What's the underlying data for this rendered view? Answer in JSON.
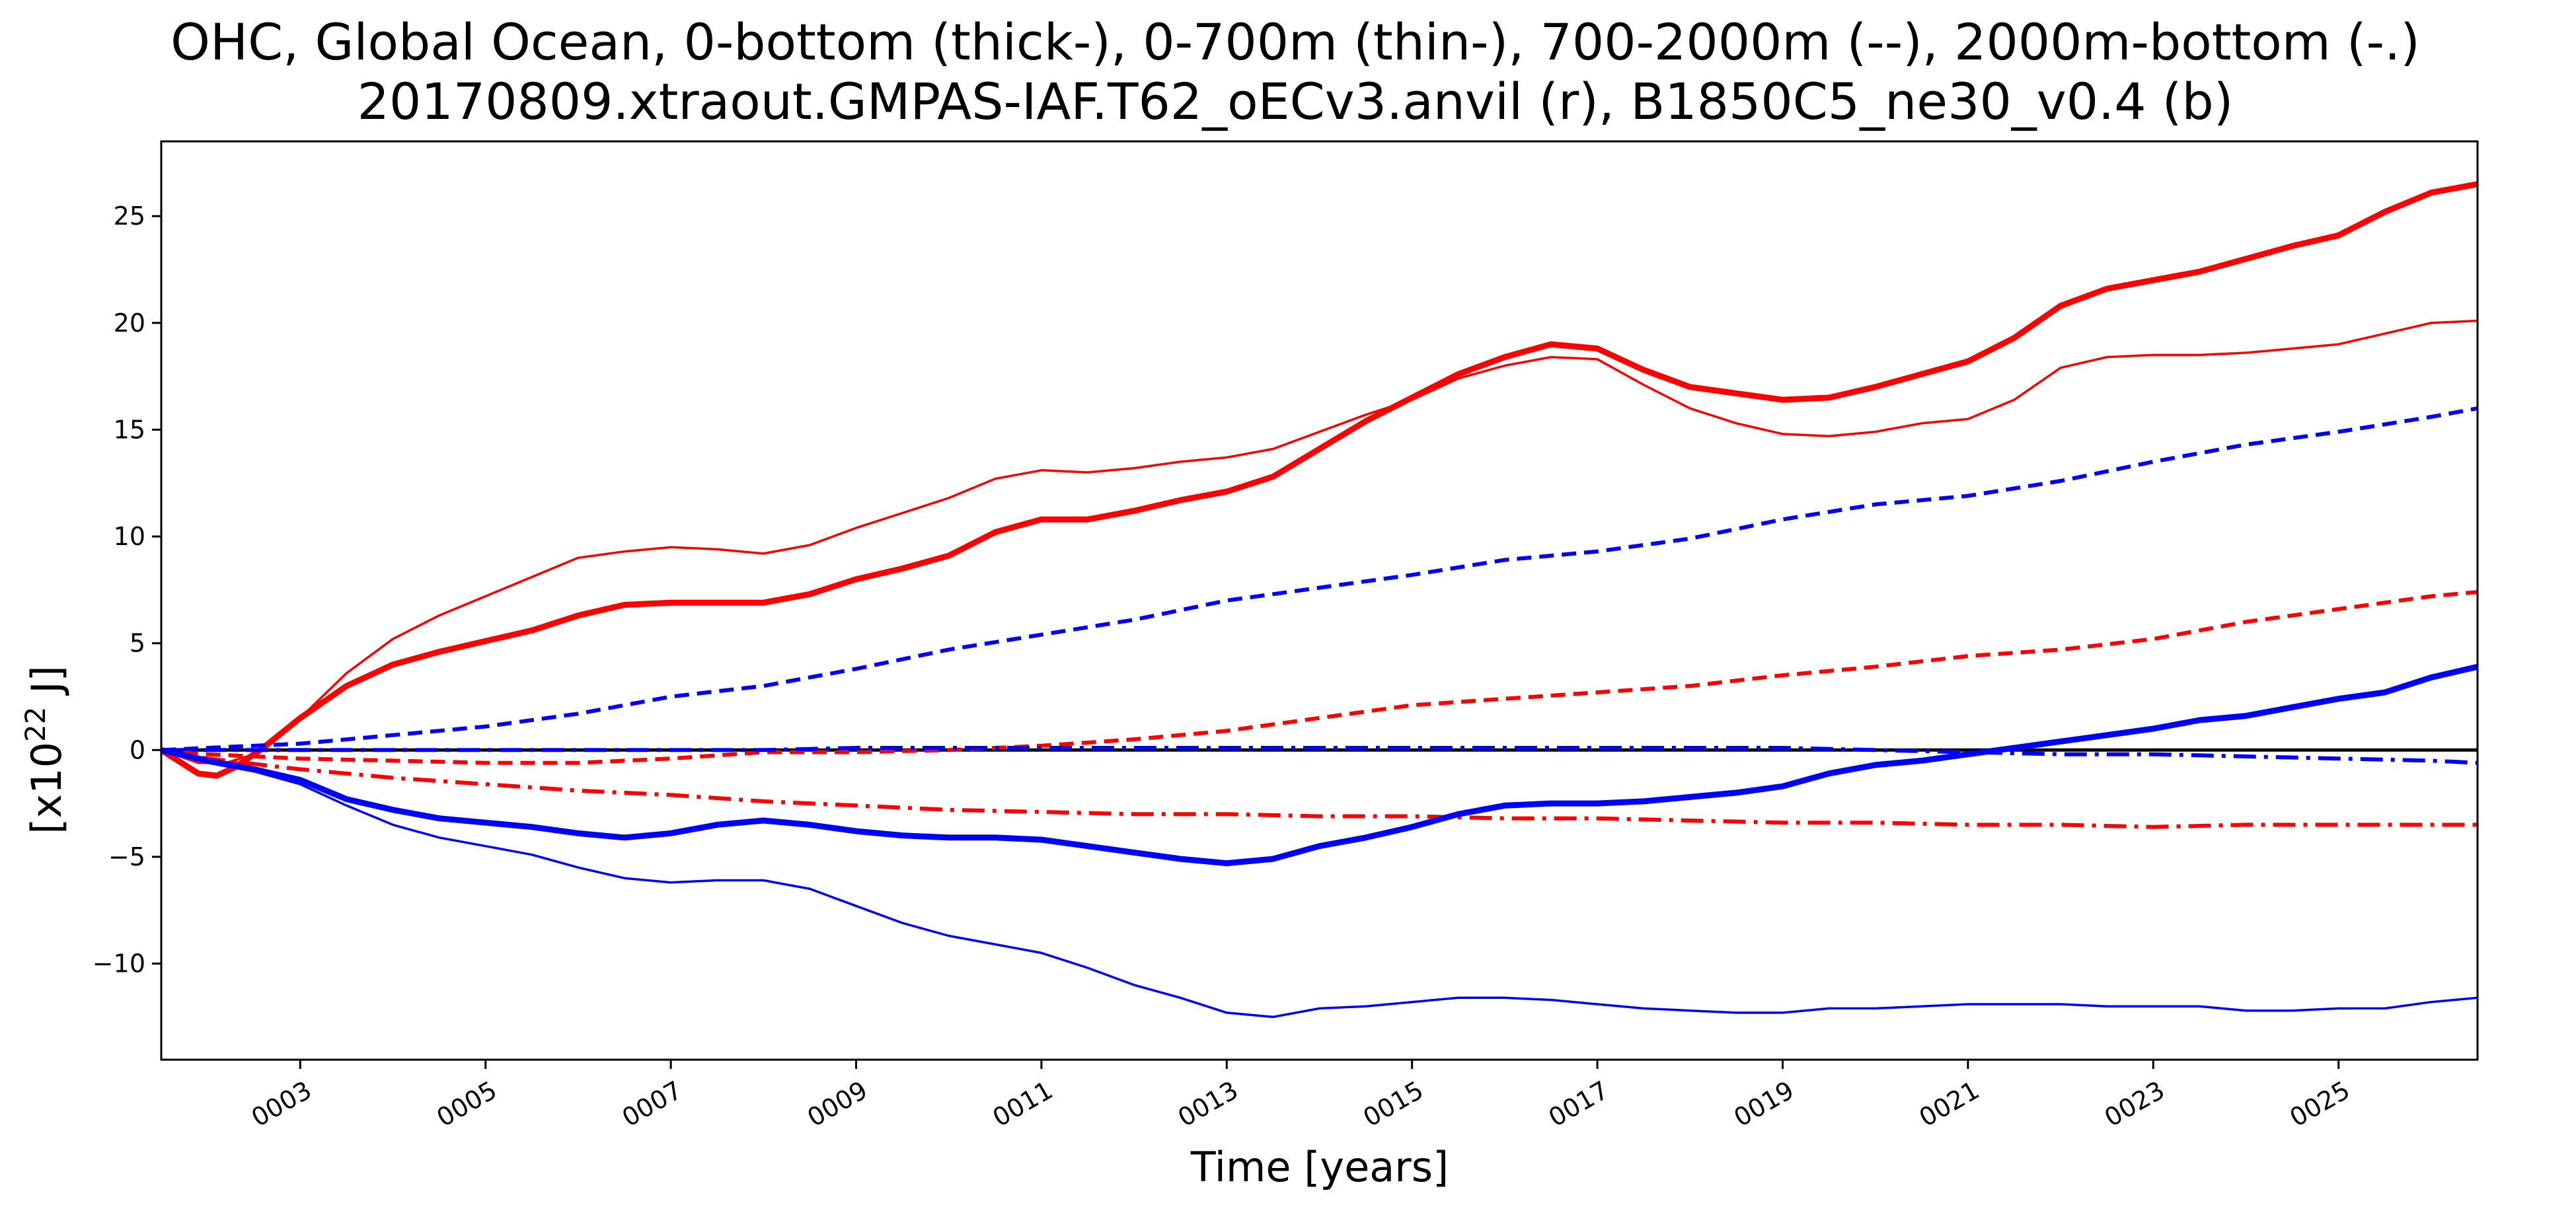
{
  "chart_data": {
    "type": "line",
    "title": [
      "OHC, Global Ocean, 0-bottom (thick-), 0-700m (thin-), 700-2000m (--), 2000m-bottom (-.)",
      "20170809.xtraout.GMPAS-IAF.T62_oECv3.anvil (r), B1850C5_ne30_v0.4 (b)"
    ],
    "xlabel": "Time [years]",
    "ylabel": "[x10",
    "ylabel_superscript": "22",
    "ylabel_unit": " J]",
    "xlim": [
      1.5,
      26.5
    ],
    "ylim": [
      -14.5,
      28.5
    ],
    "yticks": [
      -10,
      -5,
      0,
      5,
      10,
      15,
      20,
      25
    ],
    "xticks": [
      3,
      5,
      7,
      9,
      11,
      13,
      15,
      17,
      19,
      21,
      23,
      25
    ],
    "xtick_labels": [
      "0003",
      "0005",
      "0007",
      "0009",
      "0011",
      "0013",
      "0015",
      "0017",
      "0019",
      "0021",
      "0023",
      "0025"
    ],
    "zero_line": {
      "y": 0,
      "color": "#000000"
    },
    "grid": false,
    "legend": "none",
    "series": [
      {
        "run": "20170809.xtraout.GMPAS-IAF.T62_oECv3.anvil",
        "depth": "0-bottom",
        "color": "#ff0000",
        "style": "thick",
        "x": [
          1.5,
          1.9,
          2.1,
          2.3,
          2.6,
          3.0,
          3.5,
          4.0,
          4.5,
          5.0,
          5.5,
          6.0,
          6.5,
          7.0,
          7.5,
          8.0,
          8.5,
          9.0,
          9.5,
          10.0,
          10.5,
          11.0,
          11.5,
          12.0,
          12.5,
          13.0,
          13.5,
          14.0,
          14.5,
          15.0,
          15.5,
          16.0,
          16.5,
          17.0,
          17.5,
          18.0,
          18.5,
          19.0,
          19.5,
          20.0,
          20.5,
          21.0,
          21.5,
          22.0,
          22.5,
          23.0,
          23.5,
          24.0,
          24.5,
          25.0,
          25.5,
          26.0,
          26.5
        ],
        "y": [
          0,
          -1.1,
          -1.2,
          -0.8,
          0.1,
          1.5,
          3.0,
          4.0,
          4.6,
          5.1,
          5.6,
          6.3,
          6.8,
          6.9,
          6.9,
          6.9,
          7.3,
          8.0,
          8.5,
          9.1,
          10.2,
          10.8,
          10.8,
          11.2,
          11.7,
          12.1,
          12.8,
          14.1,
          15.4,
          16.5,
          17.6,
          18.4,
          19.0,
          18.8,
          17.8,
          17.0,
          16.7,
          16.4,
          16.5,
          17.0,
          17.6,
          18.2,
          19.3,
          20.8,
          21.6,
          22.0,
          22.4,
          23.0,
          23.6,
          24.1,
          25.2,
          26.1,
          26.5
        ]
      },
      {
        "run": "20170809.xtraout.GMPAS-IAF.T62_oECv3.anvil",
        "depth": "0-700m",
        "color": "#ff0000",
        "style": "thin",
        "x": [
          1.5,
          1.9,
          2.2,
          2.5,
          3.0,
          3.5,
          4.0,
          4.5,
          5.0,
          5.5,
          6.0,
          6.5,
          7.0,
          7.5,
          8.0,
          8.5,
          9.0,
          9.5,
          10.0,
          10.5,
          11.0,
          11.5,
          12.0,
          12.5,
          13.0,
          13.5,
          14.0,
          14.5,
          15.0,
          15.5,
          16.0,
          16.5,
          17.0,
          17.5,
          18.0,
          18.5,
          19.0,
          19.5,
          20.0,
          20.5,
          21.0,
          21.5,
          22.0,
          22.5,
          23.0,
          23.5,
          24.0,
          24.5,
          25.0,
          25.5,
          26.0,
          26.5
        ],
        "y": [
          0,
          -0.6,
          -0.6,
          -0.2,
          1.5,
          3.6,
          5.2,
          6.3,
          7.2,
          8.1,
          9.0,
          9.3,
          9.5,
          9.4,
          9.2,
          9.6,
          10.4,
          11.1,
          11.8,
          12.7,
          13.1,
          13.0,
          13.2,
          13.5,
          13.7,
          14.1,
          14.9,
          15.7,
          16.4,
          17.4,
          18.0,
          18.4,
          18.3,
          17.1,
          16.0,
          15.3,
          14.8,
          14.7,
          14.9,
          15.3,
          15.5,
          16.4,
          17.9,
          18.4,
          18.5,
          18.5,
          18.6,
          18.8,
          19.0,
          19.5,
          20.0,
          20.1
        ]
      },
      {
        "run": "20170809.xtraout.GMPAS-IAF.T62_oECv3.anvil",
        "depth": "700-2000m",
        "color": "#ff0000",
        "style": "dashed",
        "x": [
          1.5,
          2.0,
          3.0,
          4.0,
          5.0,
          6.0,
          7.0,
          8.0,
          9.0,
          10.0,
          11.0,
          12.0,
          13.0,
          14.0,
          15.0,
          16.0,
          17.0,
          18.0,
          19.0,
          20.0,
          21.0,
          22.0,
          23.0,
          24.0,
          25.0,
          26.0,
          26.5
        ],
        "y": [
          0,
          -0.2,
          -0.4,
          -0.5,
          -0.6,
          -0.6,
          -0.4,
          -0.1,
          -0.1,
          0.0,
          0.2,
          0.5,
          0.9,
          1.5,
          2.1,
          2.4,
          2.7,
          3.0,
          3.5,
          3.9,
          4.4,
          4.7,
          5.2,
          6.0,
          6.6,
          7.2,
          7.4
        ]
      },
      {
        "run": "20170809.xtraout.GMPAS-IAF.T62_oECv3.anvil",
        "depth": "2000m-bottom",
        "color": "#ff0000",
        "style": "dashdot",
        "x": [
          1.5,
          2.0,
          3.0,
          4.0,
          5.0,
          6.0,
          7.0,
          8.0,
          9.0,
          10.0,
          11.0,
          12.0,
          13.0,
          14.0,
          15.0,
          16.0,
          17.0,
          18.0,
          19.0,
          20.0,
          21.0,
          22.0,
          23.0,
          24.0,
          25.0,
          26.0,
          26.5
        ],
        "y": [
          0,
          -0.4,
          -0.9,
          -1.3,
          -1.6,
          -1.9,
          -2.1,
          -2.4,
          -2.6,
          -2.8,
          -2.9,
          -3.0,
          -3.0,
          -3.1,
          -3.1,
          -3.2,
          -3.2,
          -3.3,
          -3.4,
          -3.4,
          -3.5,
          -3.5,
          -3.6,
          -3.5,
          -3.5,
          -3.5,
          -3.5
        ]
      },
      {
        "run": "B1850C5_ne30_v0.4",
        "depth": "0-bottom",
        "color": "#0000ff",
        "style": "thick",
        "x": [
          1.5,
          2.0,
          2.5,
          3.0,
          3.5,
          4.0,
          4.5,
          5.0,
          5.5,
          6.0,
          6.5,
          7.0,
          7.5,
          8.0,
          8.5,
          9.0,
          9.5,
          10.0,
          10.5,
          11.0,
          11.5,
          12.0,
          12.5,
          13.0,
          13.5,
          14.0,
          14.5,
          15.0,
          15.5,
          16.0,
          16.5,
          17.0,
          17.5,
          18.0,
          18.5,
          19.0,
          19.5,
          20.0,
          20.5,
          21.0,
          21.5,
          22.0,
          22.5,
          23.0,
          23.5,
          24.0,
          24.5,
          25.0,
          25.5,
          26.0,
          26.5
        ],
        "y": [
          0,
          -0.5,
          -0.9,
          -1.4,
          -2.3,
          -2.8,
          -3.2,
          -3.4,
          -3.6,
          -3.9,
          -4.1,
          -3.9,
          -3.5,
          -3.3,
          -3.5,
          -3.8,
          -4.0,
          -4.1,
          -4.1,
          -4.2,
          -4.5,
          -4.8,
          -5.1,
          -5.3,
          -5.1,
          -4.5,
          -4.1,
          -3.6,
          -3.0,
          -2.6,
          -2.5,
          -2.5,
          -2.4,
          -2.2,
          -2.0,
          -1.7,
          -1.1,
          -0.7,
          -0.5,
          -0.2,
          0.1,
          0.4,
          0.7,
          1.0,
          1.4,
          1.6,
          2.0,
          2.4,
          2.7,
          3.4,
          3.9
        ]
      },
      {
        "run": "B1850C5_ne30_v0.4",
        "depth": "0-700m",
        "color": "#0000ff",
        "style": "thin",
        "x": [
          1.5,
          2.0,
          2.5,
          3.0,
          3.5,
          4.0,
          4.5,
          5.0,
          5.5,
          6.0,
          6.5,
          7.0,
          7.5,
          8.0,
          8.5,
          9.0,
          9.5,
          10.0,
          10.5,
          11.0,
          11.5,
          12.0,
          12.5,
          13.0,
          13.5,
          14.0,
          14.5,
          15.0,
          15.5,
          16.0,
          16.5,
          17.0,
          17.5,
          18.0,
          18.5,
          19.0,
          19.5,
          20.0,
          20.5,
          21.0,
          21.5,
          22.0,
          22.5,
          23.0,
          23.5,
          24.0,
          24.5,
          25.0,
          25.5,
          26.0,
          26.5
        ],
        "y": [
          0,
          -0.6,
          -1.0,
          -1.6,
          -2.6,
          -3.5,
          -4.1,
          -4.5,
          -4.9,
          -5.5,
          -6.0,
          -6.2,
          -6.1,
          -6.1,
          -6.5,
          -7.3,
          -8.1,
          -8.7,
          -9.1,
          -9.5,
          -10.2,
          -11.0,
          -11.6,
          -12.3,
          -12.5,
          -12.1,
          -12.0,
          -11.8,
          -11.6,
          -11.6,
          -11.7,
          -11.9,
          -12.1,
          -12.2,
          -12.3,
          -12.3,
          -12.1,
          -12.1,
          -12.0,
          -11.9,
          -11.9,
          -11.9,
          -12.0,
          -12.0,
          -12.0,
          -12.2,
          -12.2,
          -12.1,
          -12.1,
          -11.8,
          -11.6
        ]
      },
      {
        "run": "B1850C5_ne30_v0.4",
        "depth": "700-2000m",
        "color": "#0000ff",
        "style": "dashed",
        "x": [
          1.5,
          2.0,
          3.0,
          4.0,
          5.0,
          6.0,
          7.0,
          8.0,
          9.0,
          10.0,
          11.0,
          12.0,
          13.0,
          14.0,
          15.0,
          16.0,
          17.0,
          18.0,
          19.0,
          20.0,
          21.0,
          22.0,
          23.0,
          24.0,
          25.0,
          26.0,
          26.5
        ],
        "y": [
          0,
          0.1,
          0.3,
          0.7,
          1.1,
          1.7,
          2.5,
          3.0,
          3.8,
          4.7,
          5.4,
          6.1,
          7.0,
          7.6,
          8.2,
          8.9,
          9.3,
          9.9,
          10.8,
          11.5,
          11.9,
          12.6,
          13.5,
          14.3,
          14.9,
          15.6,
          16.0
        ]
      },
      {
        "run": "B1850C5_ne30_v0.4",
        "depth": "2000m-bottom",
        "color": "#0000ff",
        "style": "dashdot",
        "x": [
          1.5,
          2.0,
          3.0,
          4.0,
          5.0,
          6.0,
          7.0,
          8.0,
          9.0,
          10.0,
          11.0,
          12.0,
          13.0,
          14.0,
          15.0,
          16.0,
          17.0,
          18.0,
          19.0,
          20.0,
          21.0,
          22.0,
          23.0,
          24.0,
          25.0,
          26.0,
          26.5
        ],
        "y": [
          0,
          0.0,
          0.0,
          0.0,
          0.0,
          0.0,
          0.0,
          0.0,
          0.1,
          0.1,
          0.1,
          0.1,
          0.1,
          0.1,
          0.1,
          0.1,
          0.1,
          0.1,
          0.1,
          0.0,
          -0.1,
          -0.2,
          -0.2,
          -0.3,
          -0.4,
          -0.5,
          -0.6
        ]
      }
    ]
  }
}
